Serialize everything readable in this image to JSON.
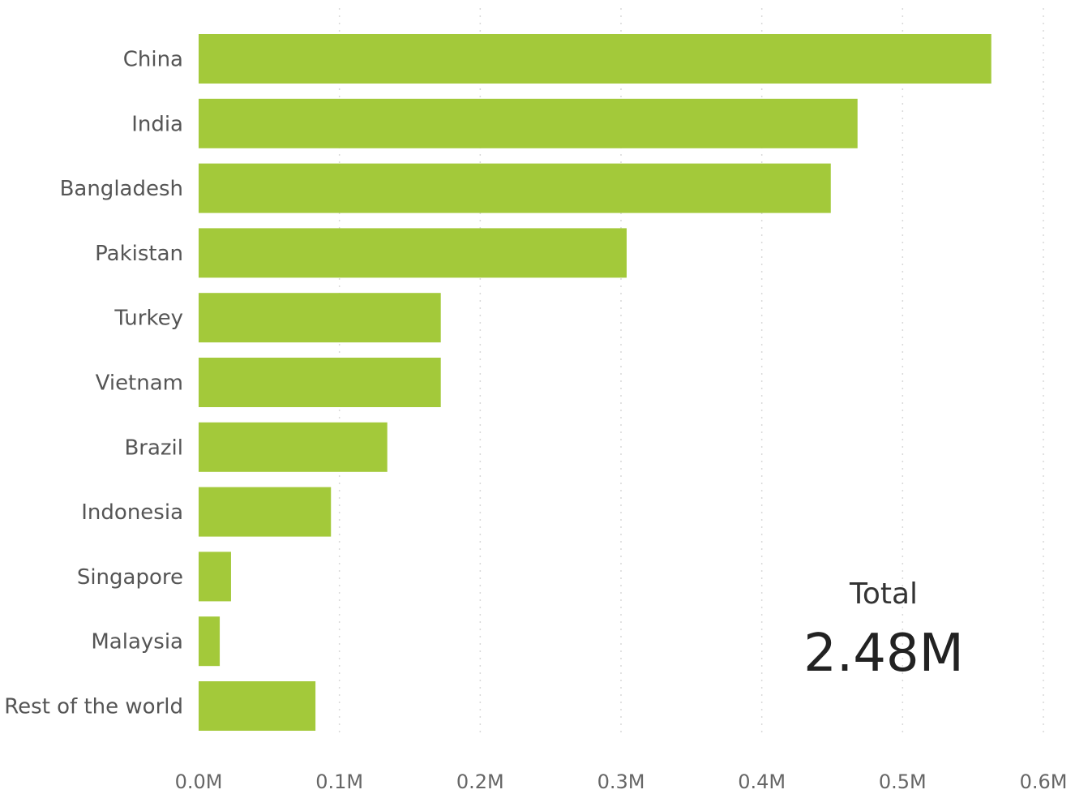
{
  "chart_data": {
    "type": "bar",
    "orientation": "horizontal",
    "categories": [
      "China",
      "India",
      "Bangladesh",
      "Pakistan",
      "Turkey",
      "Vietnam",
      "Brazil",
      "Indonesia",
      "Singapore",
      "Malaysia",
      "Rest of the world"
    ],
    "values": [
      0.563,
      0.468,
      0.449,
      0.304,
      0.172,
      0.172,
      0.134,
      0.094,
      0.023,
      0.015,
      0.083
    ],
    "value_unit": "M",
    "xlim": [
      0,
      0.6
    ],
    "x_ticks": [
      "0.0M",
      "0.1M",
      "0.2M",
      "0.3M",
      "0.4M",
      "0.5M",
      "0.6M"
    ],
    "title": "",
    "xlabel": "",
    "ylabel": "",
    "grid": "vertical dotted",
    "bar_color": "#a3c93a"
  },
  "kpi": {
    "label": "Total",
    "value": "2.48M"
  }
}
